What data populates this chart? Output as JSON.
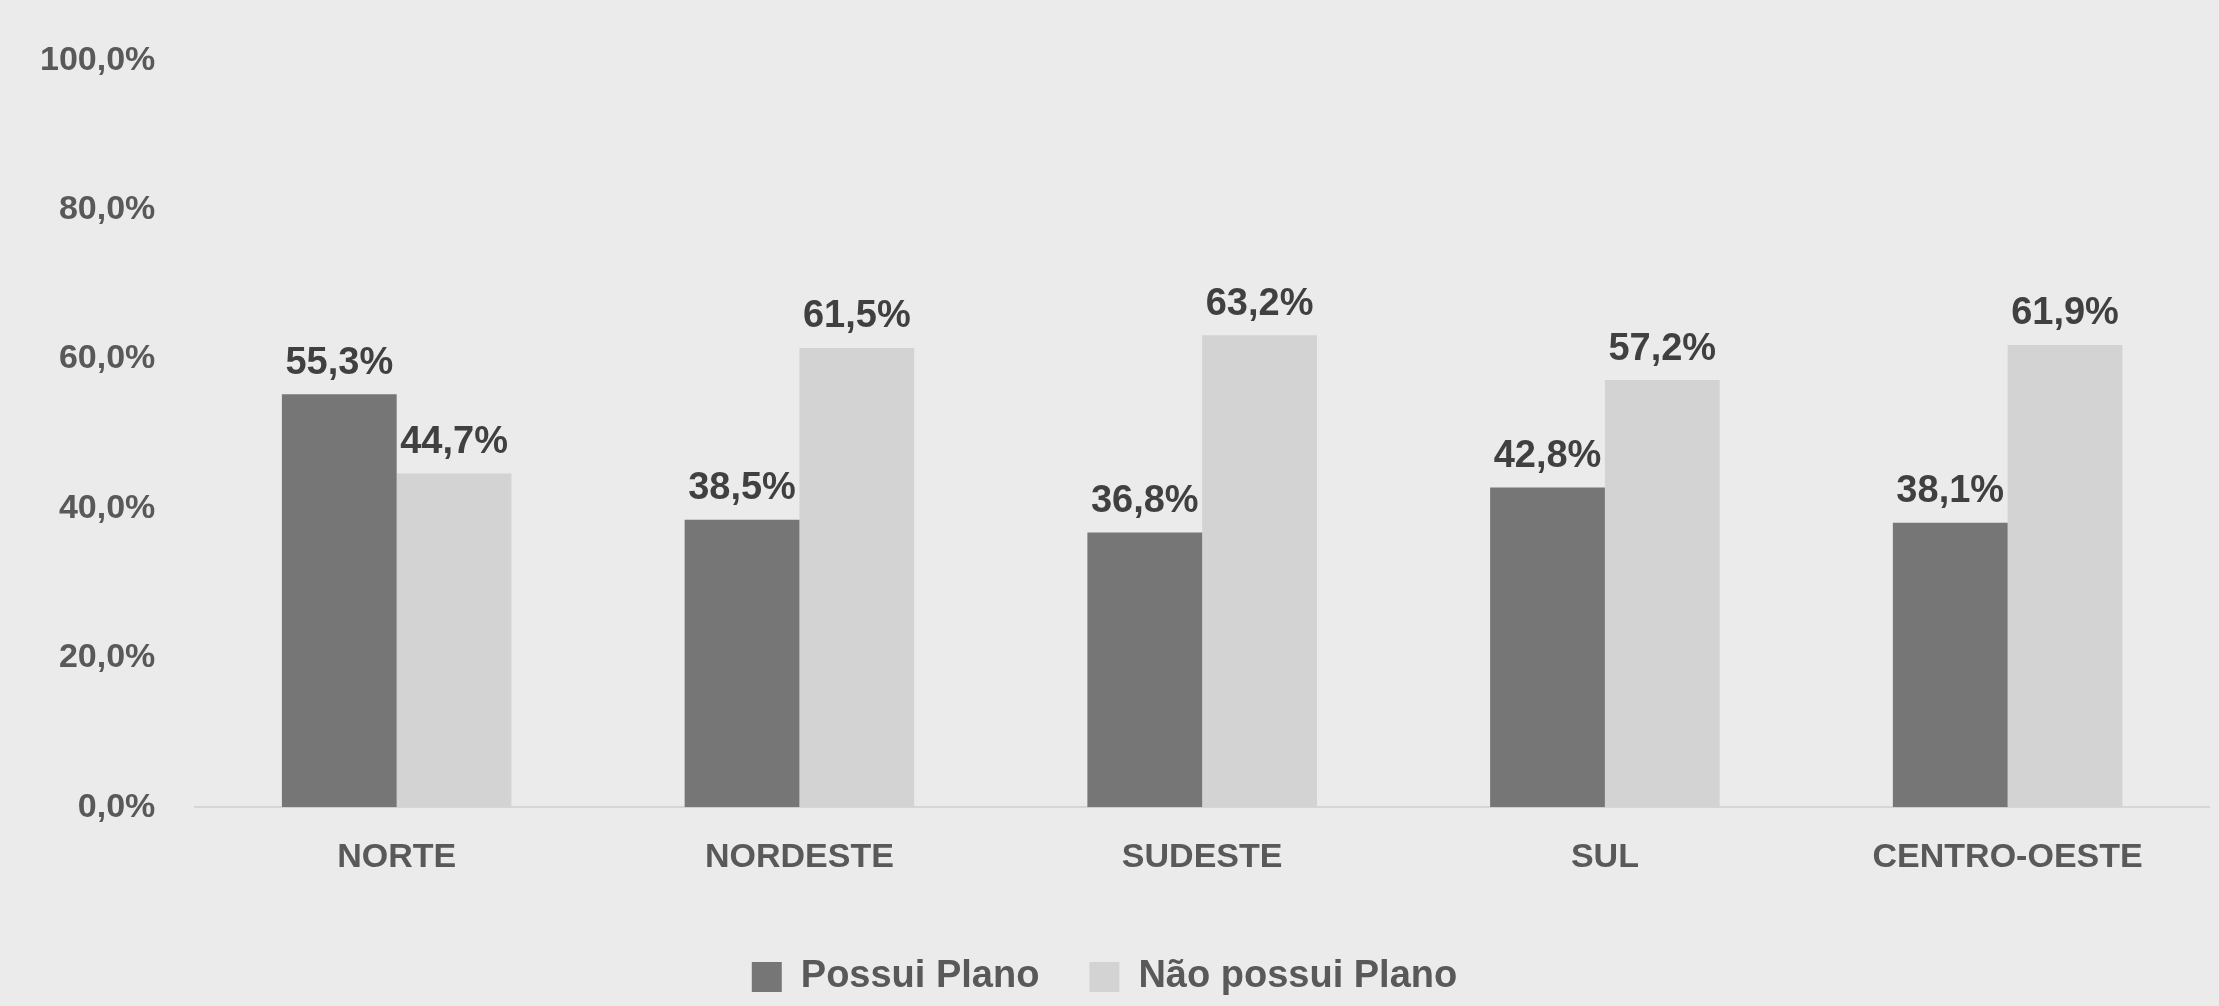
{
  "chart_data": {
    "type": "bar",
    "categories": [
      "NORTE",
      "NORDESTE",
      "SUDESTE",
      "SUL",
      "CENTRO-OESTE"
    ],
    "series": [
      {
        "name": "Possui Plano",
        "color": "#767676",
        "values": [
          55.3,
          38.5,
          36.8,
          42.8,
          38.1
        ],
        "value_labels": [
          "55,3%",
          "38,5%",
          "36,8%",
          "42,8%",
          "38,1%"
        ]
      },
      {
        "name": "Não possui Plano",
        "color": "#d3d3d3",
        "values": [
          44.7,
          61.5,
          63.2,
          57.2,
          61.9
        ],
        "value_labels": [
          "44,7%",
          "61,5%",
          "63,2%",
          "57,2%",
          "61,9%"
        ]
      }
    ],
    "ylim": [
      0,
      100
    ],
    "yticks": [
      {
        "value": 0,
        "label": "0,0%"
      },
      {
        "value": 20,
        "label": "20,0%"
      },
      {
        "value": 40,
        "label": "40,0%"
      },
      {
        "value": 60,
        "label": "60,0%"
      },
      {
        "value": 80,
        "label": "80,0%"
      },
      {
        "value": 100,
        "label": "100,0%"
      }
    ],
    "grid": false,
    "legend": "bottom"
  }
}
